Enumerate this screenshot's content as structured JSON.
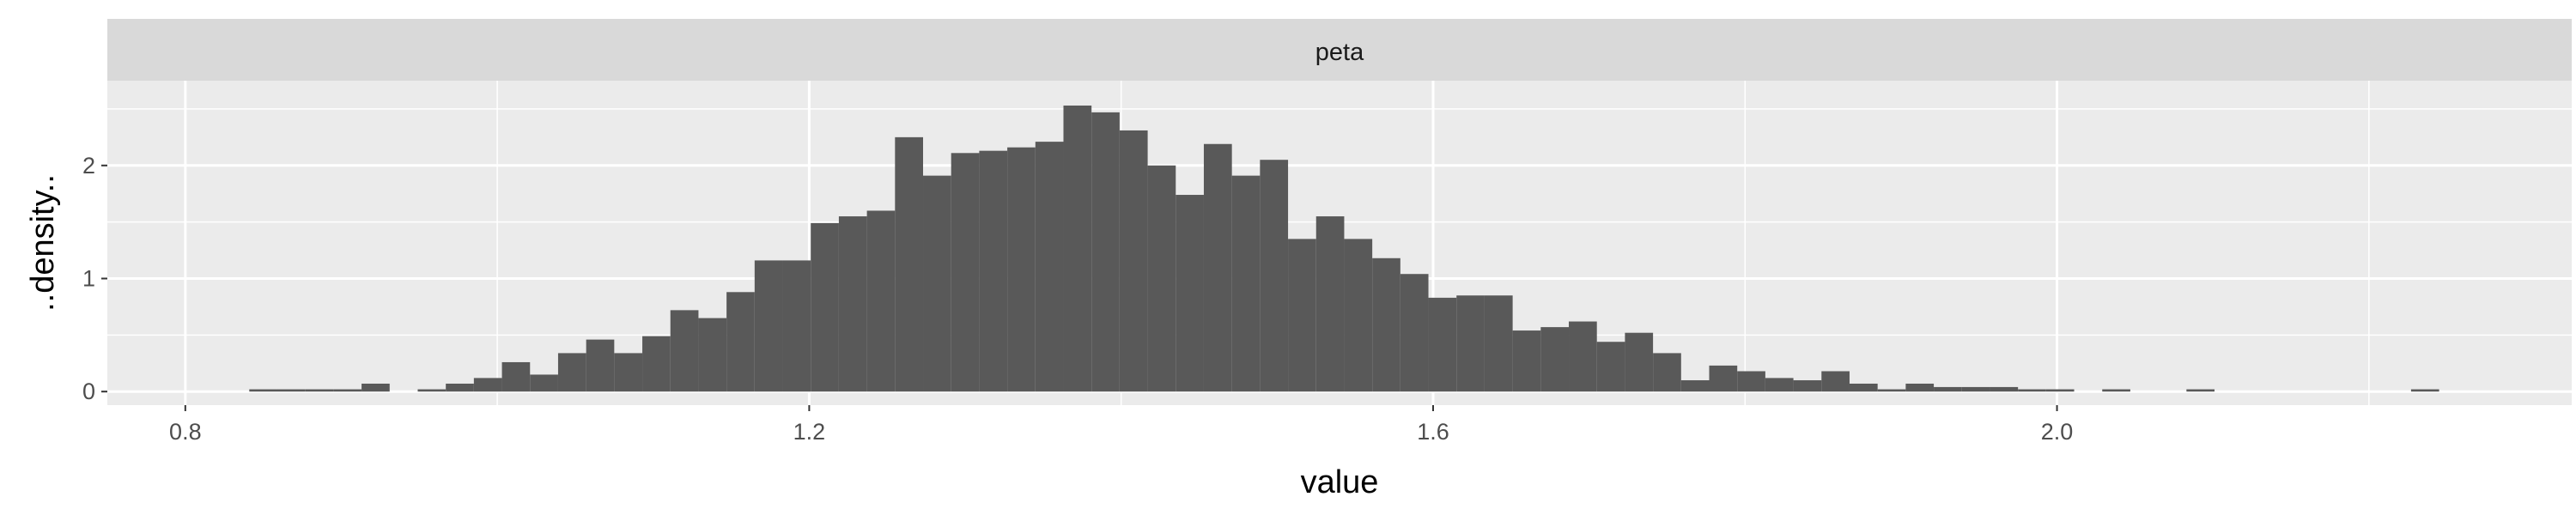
{
  "chart_data": {
    "type": "bar",
    "facet_label": "peta",
    "xlabel": "value",
    "ylabel": "..density..",
    "xlim": [
      0.75,
      2.33
    ],
    "ylim": [
      -0.12,
      2.75
    ],
    "x_ticks": [
      0.8,
      1.2,
      1.6,
      2.0
    ],
    "x_tick_labels": [
      "0.8",
      "1.2",
      "1.6",
      "2.0"
    ],
    "y_ticks": [
      0,
      1,
      2
    ],
    "y_tick_labels": [
      "0",
      "1",
      "2"
    ],
    "grid": true,
    "bin_width": 0.018,
    "bins": [
      {
        "x": 0.85,
        "y": 0.02
      },
      {
        "x": 0.868,
        "y": 0.02
      },
      {
        "x": 0.886,
        "y": 0.02
      },
      {
        "x": 0.904,
        "y": 0.02
      },
      {
        "x": 0.922,
        "y": 0.07
      },
      {
        "x": 0.94,
        "y": 0.0
      },
      {
        "x": 0.958,
        "y": 0.02
      },
      {
        "x": 0.976,
        "y": 0.07
      },
      {
        "x": 0.994,
        "y": 0.12
      },
      {
        "x": 1.012,
        "y": 0.26
      },
      {
        "x": 1.03,
        "y": 0.15
      },
      {
        "x": 1.048,
        "y": 0.34
      },
      {
        "x": 1.066,
        "y": 0.46
      },
      {
        "x": 1.084,
        "y": 0.34
      },
      {
        "x": 1.102,
        "y": 0.49
      },
      {
        "x": 1.12,
        "y": 0.72
      },
      {
        "x": 1.138,
        "y": 0.65
      },
      {
        "x": 1.156,
        "y": 0.88
      },
      {
        "x": 1.174,
        "y": 1.16
      },
      {
        "x": 1.192,
        "y": 1.16
      },
      {
        "x": 1.21,
        "y": 1.49
      },
      {
        "x": 1.228,
        "y": 1.55
      },
      {
        "x": 1.246,
        "y": 1.6
      },
      {
        "x": 1.264,
        "y": 2.25
      },
      {
        "x": 1.282,
        "y": 1.91
      },
      {
        "x": 1.3,
        "y": 2.11
      },
      {
        "x": 1.318,
        "y": 2.13
      },
      {
        "x": 1.336,
        "y": 2.16
      },
      {
        "x": 1.354,
        "y": 2.21
      },
      {
        "x": 1.372,
        "y": 2.53
      },
      {
        "x": 1.39,
        "y": 2.47
      },
      {
        "x": 1.408,
        "y": 2.31
      },
      {
        "x": 1.426,
        "y": 2.0
      },
      {
        "x": 1.444,
        "y": 1.74
      },
      {
        "x": 1.462,
        "y": 2.19
      },
      {
        "x": 1.48,
        "y": 1.91
      },
      {
        "x": 1.498,
        "y": 2.05
      },
      {
        "x": 1.516,
        "y": 1.35
      },
      {
        "x": 1.534,
        "y": 1.55
      },
      {
        "x": 1.552,
        "y": 1.35
      },
      {
        "x": 1.57,
        "y": 1.18
      },
      {
        "x": 1.588,
        "y": 1.04
      },
      {
        "x": 1.606,
        "y": 0.83
      },
      {
        "x": 1.624,
        "y": 0.85
      },
      {
        "x": 1.642,
        "y": 0.85
      },
      {
        "x": 1.66,
        "y": 0.54
      },
      {
        "x": 1.678,
        "y": 0.57
      },
      {
        "x": 1.696,
        "y": 0.62
      },
      {
        "x": 1.714,
        "y": 0.44
      },
      {
        "x": 1.732,
        "y": 0.52
      },
      {
        "x": 1.75,
        "y": 0.34
      },
      {
        "x": 1.768,
        "y": 0.1
      },
      {
        "x": 1.786,
        "y": 0.23
      },
      {
        "x": 1.804,
        "y": 0.18
      },
      {
        "x": 1.822,
        "y": 0.12
      },
      {
        "x": 1.84,
        "y": 0.1
      },
      {
        "x": 1.858,
        "y": 0.18
      },
      {
        "x": 1.876,
        "y": 0.07
      },
      {
        "x": 1.894,
        "y": 0.02
      },
      {
        "x": 1.912,
        "y": 0.07
      },
      {
        "x": 1.93,
        "y": 0.04
      },
      {
        "x": 1.948,
        "y": 0.04
      },
      {
        "x": 1.966,
        "y": 0.04
      },
      {
        "x": 1.984,
        "y": 0.02
      },
      {
        "x": 2.002,
        "y": 0.02
      },
      {
        "x": 2.038,
        "y": 0.02
      },
      {
        "x": 2.092,
        "y": 0.02
      },
      {
        "x": 2.236,
        "y": 0.02
      }
    ]
  },
  "colors": {
    "panel_background": "#ebebeb",
    "strip_background": "#d9d9d9",
    "grid_major": "#ffffff",
    "bar_fill": "#595959",
    "axis_text": "#4d4d4d",
    "axis_title": "#000000"
  }
}
